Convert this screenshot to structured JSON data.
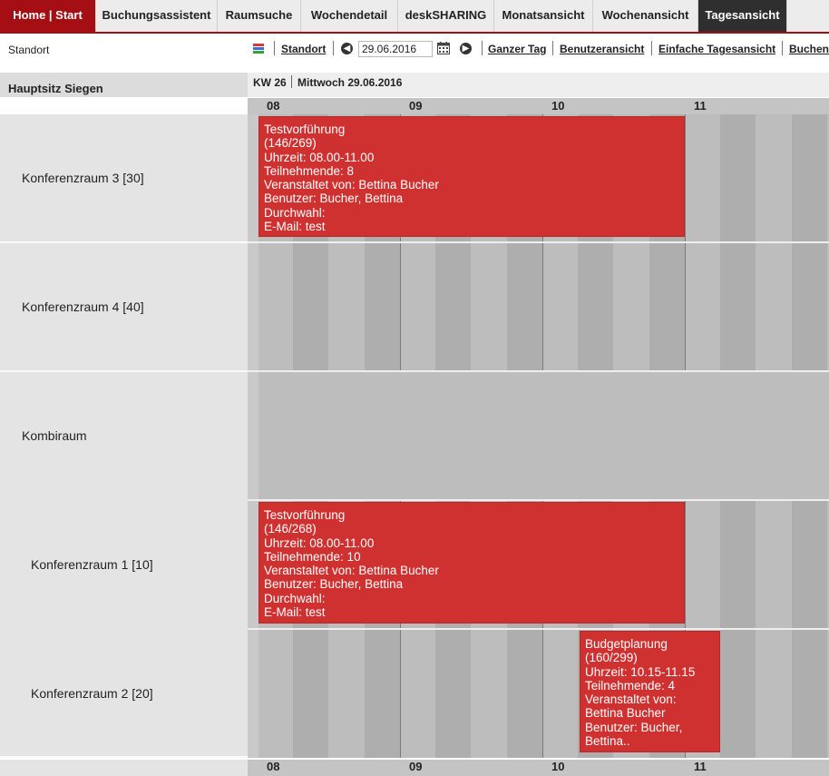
{
  "nav": {
    "tabs": [
      {
        "label": "Home | Start"
      },
      {
        "label": "Buchungsassistent"
      },
      {
        "label": "Raumsuche"
      },
      {
        "label": "Wochendetail"
      },
      {
        "label": "deskSHARING"
      },
      {
        "label": "Monatsansicht"
      },
      {
        "label": "Wochenansicht"
      },
      {
        "label": "Tagesansicht"
      }
    ],
    "active_tab": "Tagesansicht",
    "home_color": "#a50e13",
    "active_color": "#2f2f2f"
  },
  "sidebar": {
    "standort_label": "Standort",
    "location": "Hauptsitz Siegen"
  },
  "toolbar": {
    "color_icon": "color-legend-icon",
    "standort_link": "Standort",
    "prev_icon": "arrow-left-circle-icon",
    "date_value": "29.06.2016",
    "calendar_icon": "calendar-icon",
    "next_icon": "arrow-right-circle-icon",
    "ganzer_tag": "Ganzer Tag",
    "benutzeransicht": "Benutzeransicht",
    "einfache_tagesansicht": "Einfache Tagesansicht",
    "buchen": "Buchen"
  },
  "header": {
    "kw": "KW 26",
    "day": "Mittwoch 29.06.2016"
  },
  "hours": [
    "08",
    "09",
    "10",
    "11"
  ],
  "rooms": [
    {
      "name": "Konferenzraum 3 [30]"
    },
    {
      "name": "Konferenzraum 4 [40]"
    },
    {
      "name": "Kombiraum"
    },
    {
      "name": "Konferenzraum 1 [10]"
    },
    {
      "name": "Konferenzraum 2 [20]"
    }
  ],
  "bookings": [
    {
      "room": "Konferenzraum 3 [30]",
      "start": "08:00",
      "end": "11:00",
      "lines": [
        "Testvorführung",
        "(146/269)",
        "Uhrzeit: 08.00-11.00",
        "Teilnehmende: 8",
        "Veranstaltet von: Bettina Bucher",
        "Benutzer: Bucher, Bettina",
        "Durchwahl:",
        "E-Mail: test"
      ]
    },
    {
      "room": "Konferenzraum 1 [10]",
      "start": "08:00",
      "end": "11:00",
      "lines": [
        "Testvorführung",
        "(146/268)",
        "Uhrzeit: 08.00-11.00",
        "Teilnehmende: 10",
        "Veranstaltet von: Bettina Bucher",
        "Benutzer: Bucher, Bettina",
        "Durchwahl:",
        "E-Mail: test"
      ]
    },
    {
      "room": "Konferenzraum 2 [20]",
      "start": "10:15",
      "end": "11:15",
      "lines": [
        "Budgetplanung",
        "(160/299)",
        "Uhrzeit: 10.15-11.15",
        "Teilnehmende: 4",
        "Veranstaltet von:",
        "Bettina Bucher",
        "Benutzer: Bucher,",
        "Bettina.."
      ]
    }
  ],
  "colors": {
    "booking": "#cf3131",
    "grid": "#bdbdbd",
    "stripe_dark": "#aeaeae"
  }
}
